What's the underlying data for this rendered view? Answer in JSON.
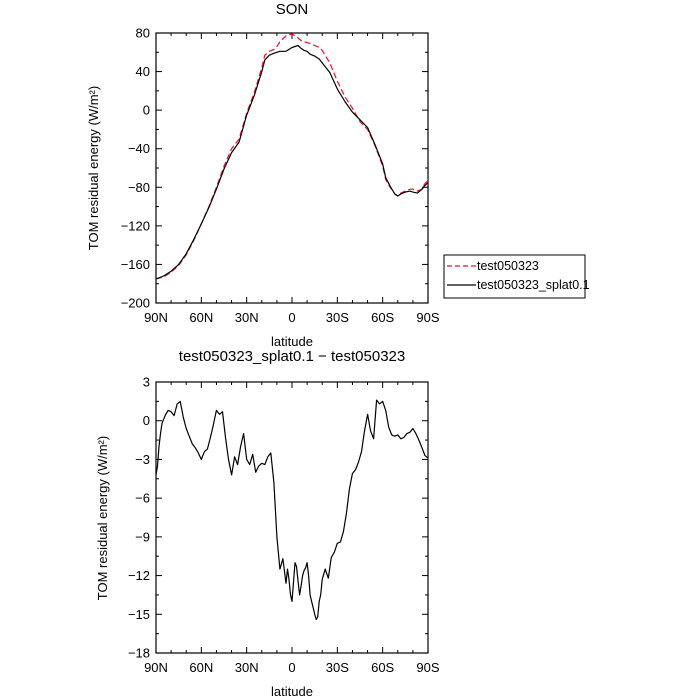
{
  "chart_data": [
    {
      "type": "line",
      "title": "SON",
      "xlabel": "latitude",
      "ylabel": "TOM residual energy (W/m²)",
      "xlim": [
        90,
        -90
      ],
      "ylim": [
        -200,
        80
      ],
      "xticks": [
        {
          "v": 90,
          "label": "90N"
        },
        {
          "v": 60,
          "label": "60N"
        },
        {
          "v": 30,
          "label": "30N"
        },
        {
          "v": 0,
          "label": "0"
        },
        {
          "v": -30,
          "label": "30S"
        },
        {
          "v": -60,
          "label": "60S"
        },
        {
          "v": -90,
          "label": "90S"
        }
      ],
      "yticks": [
        {
          "v": 80,
          "label": "80"
        },
        {
          "v": 40,
          "label": "40"
        },
        {
          "v": 0,
          "label": "0"
        },
        {
          "v": -40,
          "label": "−40"
        },
        {
          "v": -80,
          "label": "−80"
        },
        {
          "v": -120,
          "label": "−120"
        },
        {
          "v": -160,
          "label": "−160"
        },
        {
          "v": -200,
          "label": "−200"
        }
      ],
      "legend": "right",
      "series": [
        {
          "name": "test050323",
          "color": "#e8102a",
          "dash": "dashed",
          "x": [
            90,
            85,
            80,
            75,
            70,
            65,
            60,
            55,
            50,
            45,
            40,
            35,
            30,
            25,
            20,
            18,
            15,
            12,
            10,
            8,
            6,
            4,
            2,
            0,
            -2,
            -4,
            -6,
            -8,
            -10,
            -12,
            -15,
            -18,
            -20,
            -25,
            -30,
            -35,
            -40,
            -45,
            -50,
            -55,
            -60,
            -62,
            -65,
            -68,
            -70,
            -72,
            -75,
            -78,
            -80,
            -83,
            -86,
            -88,
            -90
          ],
          "y": [
            -175,
            -173,
            -168,
            -161,
            -150,
            -135,
            -118,
            -100,
            -80,
            -58,
            -40,
            -30,
            -3,
            18,
            44,
            57,
            61,
            63,
            66,
            71,
            74,
            77,
            78,
            79,
            77,
            75,
            72,
            71,
            70,
            69,
            67,
            65,
            62,
            49,
            30,
            14,
            2,
            -12,
            -20,
            -37,
            -58,
            -72,
            -80,
            -87,
            -89,
            -86,
            -84,
            -82,
            -82,
            -84,
            -82,
            -76,
            -73
          ]
        },
        {
          "name": "test050323_splat0.1",
          "color": "#000000",
          "dash": "solid",
          "x": [
            90,
            85,
            80,
            75,
            70,
            65,
            60,
            55,
            50,
            45,
            40,
            35,
            30,
            25,
            20,
            18,
            15,
            12,
            10,
            8,
            6,
            4,
            2,
            0,
            -2,
            -4,
            -6,
            -8,
            -10,
            -12,
            -15,
            -18,
            -20,
            -25,
            -30,
            -35,
            -40,
            -45,
            -50,
            -55,
            -60,
            -62,
            -65,
            -68,
            -70,
            -72,
            -75,
            -78,
            -80,
            -83,
            -86,
            -88,
            -90
          ],
          "y": [
            -175,
            -172,
            -167,
            -160,
            -149,
            -134,
            -118,
            -101,
            -82,
            -61,
            -44,
            -33,
            -5,
            15,
            40,
            52,
            57,
            59,
            60,
            61,
            61,
            61,
            63,
            65,
            66,
            67,
            64,
            62,
            61,
            58,
            56,
            53,
            49,
            39,
            22,
            9,
            -2,
            -10,
            -18,
            -36,
            -56,
            -70,
            -79,
            -87,
            -89,
            -87,
            -85,
            -84,
            -85,
            -86,
            -82,
            -78,
            -75
          ]
        }
      ]
    },
    {
      "type": "line",
      "title": "test050323_splat0.1 − test050323",
      "xlabel": "latitude",
      "ylabel": "TOM residual energy (W/m²)",
      "xlim": [
        90,
        -90
      ],
      "ylim": [
        -18,
        3
      ],
      "xticks": [
        {
          "v": 90,
          "label": "90N"
        },
        {
          "v": 60,
          "label": "60N"
        },
        {
          "v": 30,
          "label": "30N"
        },
        {
          "v": 0,
          "label": "0"
        },
        {
          "v": -30,
          "label": "30S"
        },
        {
          "v": -60,
          "label": "60S"
        },
        {
          "v": -90,
          "label": "90S"
        }
      ],
      "yticks": [
        {
          "v": 3,
          "label": "3"
        },
        {
          "v": 0,
          "label": "0"
        },
        {
          "v": -3,
          "label": "−3"
        },
        {
          "v": -6,
          "label": "−6"
        },
        {
          "v": -9,
          "label": "−9"
        },
        {
          "v": -12,
          "label": "−12"
        },
        {
          "v": -15,
          "label": "−15"
        },
        {
          "v": -18,
          "label": "−18"
        }
      ],
      "series": [
        {
          "color": "#000000",
          "dash": "solid",
          "x": [
            90,
            89,
            88,
            87,
            86,
            84,
            82,
            80,
            78,
            76,
            74,
            72,
            70,
            68,
            66,
            64,
            62,
            60,
            58,
            56,
            54,
            52,
            50,
            48,
            46,
            44,
            42,
            40,
            38,
            36,
            34,
            32,
            30,
            28,
            26,
            24,
            22,
            20,
            18,
            16,
            14,
            12,
            10,
            8,
            6,
            4,
            3,
            2,
            1,
            0,
            -1,
            -2,
            -3,
            -4,
            -5,
            -6,
            -7,
            -8,
            -9,
            -10,
            -11,
            -12,
            -13,
            -14,
            -15,
            -16,
            -17,
            -18,
            -19,
            -20,
            -22,
            -24,
            -26,
            -28,
            -30,
            -32,
            -34,
            -36,
            -38,
            -40,
            -42,
            -44,
            -46,
            -48,
            -50,
            -52,
            -54,
            -56,
            -58,
            -60,
            -62,
            -64,
            -66,
            -68,
            -70,
            -72,
            -74,
            -76,
            -78,
            -80,
            -82,
            -84,
            -86,
            -88,
            -90
          ],
          "y": [
            -4.2,
            -3.5,
            -2.0,
            -1.0,
            -0.2,
            0.4,
            0.8,
            0.7,
            0.4,
            1.3,
            1.5,
            0.3,
            -0.6,
            -1.2,
            -1.8,
            -2.1,
            -2.5,
            -3.0,
            -2.4,
            -2.2,
            -1.3,
            -0.3,
            0.8,
            0.5,
            0.7,
            -1.3,
            -3.0,
            -4.2,
            -2.8,
            -3.4,
            -2.0,
            -1.0,
            -3.0,
            -3.4,
            -2.6,
            -4.0,
            -3.5,
            -3.3,
            -3.4,
            -2.8,
            -2.5,
            -4.8,
            -9.0,
            -11.5,
            -10.7,
            -12.6,
            -11.5,
            -12.3,
            -13.5,
            -14.0,
            -12.5,
            -11.0,
            -11.3,
            -12.4,
            -13.5,
            -12.8,
            -12.0,
            -11.6,
            -11.4,
            -11.0,
            -12.0,
            -13.5,
            -14.0,
            -14.5,
            -15.0,
            -15.4,
            -15.2,
            -14.0,
            -13.5,
            -12.3,
            -11.5,
            -12.2,
            -10.6,
            -10.2,
            -9.5,
            -9.4,
            -8.6,
            -7.2,
            -5.3,
            -4.1,
            -3.8,
            -3.2,
            -2.4,
            -0.8,
            0.5,
            -0.8,
            -1.4,
            1.6,
            1.3,
            1.5,
            0.8,
            -0.5,
            -1.1,
            -1.2,
            -1.1,
            -1.4,
            -1.3,
            -1.0,
            -0.9,
            -0.6,
            -1.0,
            -1.5,
            -2.1,
            -2.7,
            -2.9
          ]
        }
      ]
    }
  ]
}
